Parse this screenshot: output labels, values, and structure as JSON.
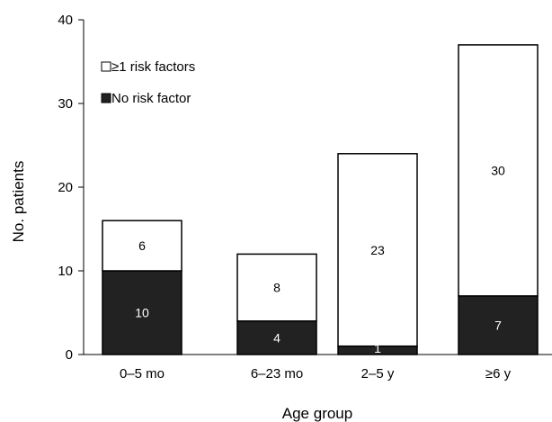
{
  "chart_data": {
    "type": "bar",
    "stacked": true,
    "categories": [
      "0–5 mo",
      "6–23 mo",
      "2–5 y",
      "≥6 y"
    ],
    "series": [
      {
        "name": "No risk factor",
        "values": [
          10,
          4,
          1,
          7
        ],
        "color": "#222222"
      },
      {
        "name": "≥1 risk factors",
        "values": [
          6,
          8,
          23,
          30
        ],
        "color": "#ffffff"
      }
    ],
    "xlabel": "Age group",
    "ylabel": "No. patients",
    "ylim": [
      0,
      40
    ],
    "yticks": [
      "0",
      "10",
      "20",
      "30",
      "40"
    ],
    "grid": false,
    "legend_position": "top-left"
  }
}
